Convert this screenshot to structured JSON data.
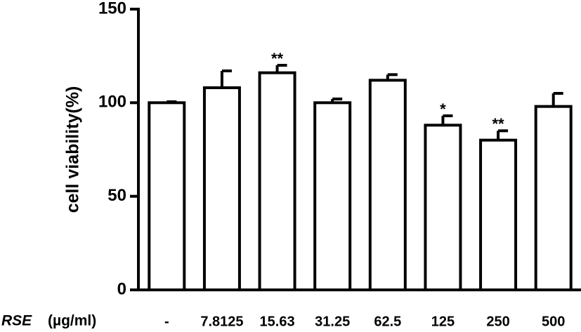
{
  "chart_data": {
    "type": "bar",
    "ylabel": "cell viability(%)",
    "xlabel_italic": "RSE",
    "xlabel": "(µg/ml)",
    "categories": [
      "-",
      "7.8125",
      "15.63",
      "31.25",
      "62.5",
      "125",
      "250",
      "500"
    ],
    "values": [
      100,
      108,
      116,
      100,
      112,
      88,
      80,
      98
    ],
    "errors": [
      0.5,
      9,
      4,
      2,
      3,
      5,
      5,
      7
    ],
    "significance": [
      null,
      null,
      "**",
      null,
      null,
      "*",
      "**",
      null
    ],
    "color": "#ffffff",
    "edge_color": "#000000",
    "ylim": [
      0,
      150
    ],
    "yticks": [
      0,
      50,
      100,
      150
    ]
  }
}
